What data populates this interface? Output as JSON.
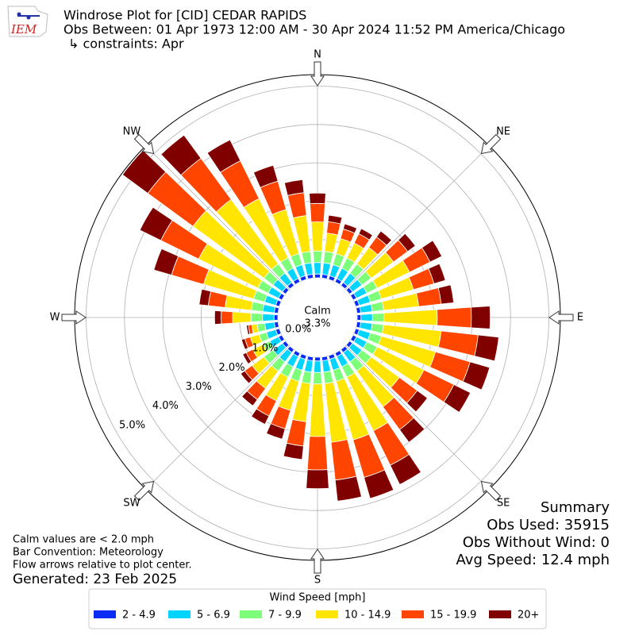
{
  "logo_text": "IEM",
  "chart_data": {
    "type": "windrose",
    "title": "Windrose Plot for [CID] CEDAR RAPIDS",
    "subtitle": "Obs Between: 01 Apr 1973 12:00 AM - 30 Apr 2024 11:52 PM America/Chicago",
    "constraints": "↳ constraints: Apr",
    "x": [
      0,
      10,
      20,
      30,
      40,
      50,
      60,
      70,
      80,
      90,
      100,
      110,
      120,
      130,
      140,
      150,
      160,
      170,
      180,
      190,
      200,
      210,
      220,
      230,
      240,
      250,
      260,
      270,
      280,
      290,
      300,
      310,
      320,
      330,
      340,
      350
    ],
    "xticks": [
      {
        "value": 0,
        "label": "N"
      },
      {
        "value": 45,
        "label": "NE"
      },
      {
        "value": 90,
        "label": "E"
      },
      {
        "value": 135,
        "label": "SE"
      },
      {
        "value": 180,
        "label": "S"
      },
      {
        "value": 225,
        "label": "SW"
      },
      {
        "value": 270,
        "label": "W"
      },
      {
        "value": 315,
        "label": "NW"
      }
    ],
    "ylim": [
      0,
      5.3
    ],
    "yticks": [
      {
        "value": 0,
        "label": "0.0%"
      },
      {
        "value": 1,
        "label": "1.0%"
      },
      {
        "value": 2,
        "label": "2.0%"
      },
      {
        "value": 3,
        "label": "3.0%"
      },
      {
        "value": 4,
        "label": "4.0%"
      },
      {
        "value": 5,
        "label": "5.0%"
      }
    ],
    "grid": true,
    "legend_title": "Wind Speed [mph]",
    "legend": "lower center",
    "series": [
      {
        "name": "2 - 4.9",
        "color": "#0b2cf5",
        "values": [
          0.1,
          0.1,
          0.1,
          0.1,
          0.1,
          0.1,
          0.1,
          0.1,
          0.1,
          0.1,
          0.1,
          0.1,
          0.1,
          0.1,
          0.1,
          0.1,
          0.1,
          0.1,
          0.1,
          0.1,
          0.1,
          0.1,
          0.1,
          0.1,
          0.1,
          0.1,
          0.1,
          0.1,
          0.1,
          0.1,
          0.1,
          0.1,
          0.1,
          0.1,
          0.1,
          0.1
        ]
      },
      {
        "name": "5 - 6.9",
        "color": "#00d4ff",
        "values": [
          0.3,
          0.3,
          0.3,
          0.3,
          0.3,
          0.3,
          0.3,
          0.3,
          0.3,
          0.3,
          0.3,
          0.3,
          0.3,
          0.3,
          0.3,
          0.3,
          0.3,
          0.3,
          0.3,
          0.3,
          0.3,
          0.3,
          0.3,
          0.3,
          0.25,
          0.25,
          0.25,
          0.3,
          0.3,
          0.3,
          0.3,
          0.3,
          0.3,
          0.3,
          0.3,
          0.3
        ]
      },
      {
        "name": "7 - 9.9",
        "color": "#7dff7a",
        "values": [
          0.3,
          0.3,
          0.3,
          0.3,
          0.3,
          0.3,
          0.3,
          0.3,
          0.3,
          0.3,
          0.3,
          0.3,
          0.3,
          0.3,
          0.3,
          0.3,
          0.3,
          0.3,
          0.3,
          0.3,
          0.3,
          0.3,
          0.3,
          0.3,
          0.2,
          0.2,
          0.2,
          0.3,
          0.3,
          0.3,
          0.3,
          0.3,
          0.3,
          0.3,
          0.3,
          0.3
        ]
      },
      {
        "name": "10 - 14.9",
        "color": "#ffe500",
        "values": [
          0.76,
          0.48,
          0.41,
          0.43,
          0.53,
          0.72,
          0.94,
          0.87,
          0.92,
          1.39,
          1.51,
          1.47,
          1.36,
          0.91,
          1.15,
          1.56,
          1.59,
          1.54,
          1.37,
          1.0,
          0.79,
          0.69,
          0.56,
          0.38,
          0.3,
          0.24,
          0.14,
          0.48,
          0.69,
          1.36,
          1.72,
          2.29,
          2.08,
          1.72,
          1.2,
          0.94
        ]
      },
      {
        "name": "15 - 19.9",
        "color": "#ff4500",
        "values": [
          0.48,
          0.3,
          0.26,
          0.27,
          0.34,
          0.46,
          0.6,
          0.56,
          0.59,
          0.89,
          0.97,
          0.94,
          0.87,
          0.58,
          0.74,
          1.0,
          1.02,
          0.99,
          0.87,
          0.64,
          0.5,
          0.44,
          0.36,
          0.24,
          0.19,
          0.15,
          0.09,
          0.3,
          0.44,
          0.87,
          1.1,
          1.46,
          1.33,
          1.1,
          0.77,
          0.6
        ]
      },
      {
        "name": "20+",
        "color": "#800000",
        "values": [
          0.27,
          0.17,
          0.14,
          0.15,
          0.19,
          0.25,
          0.34,
          0.31,
          0.33,
          0.49,
          0.54,
          0.53,
          0.48,
          0.33,
          0.41,
          0.56,
          0.57,
          0.55,
          0.49,
          0.35,
          0.28,
          0.24,
          0.2,
          0.13,
          0.1,
          0.09,
          0.05,
          0.17,
          0.24,
          0.48,
          0.61,
          0.82,
          0.75,
          0.61,
          0.43,
          0.34
        ]
      }
    ],
    "calm": {
      "label": "Calm",
      "value": 3.3,
      "value_label": "3.3%"
    },
    "summary": [
      "Summary",
      "Obs Used: 35915",
      "Obs Without Wind: 0",
      "Avg Speed: 12.4 mph"
    ],
    "notes": [
      "Calm values are < 2.0 mph",
      "Bar Convention: Meteorology",
      "Flow arrows relative to plot center."
    ],
    "generated": "Generated: 23 Feb 2025"
  }
}
